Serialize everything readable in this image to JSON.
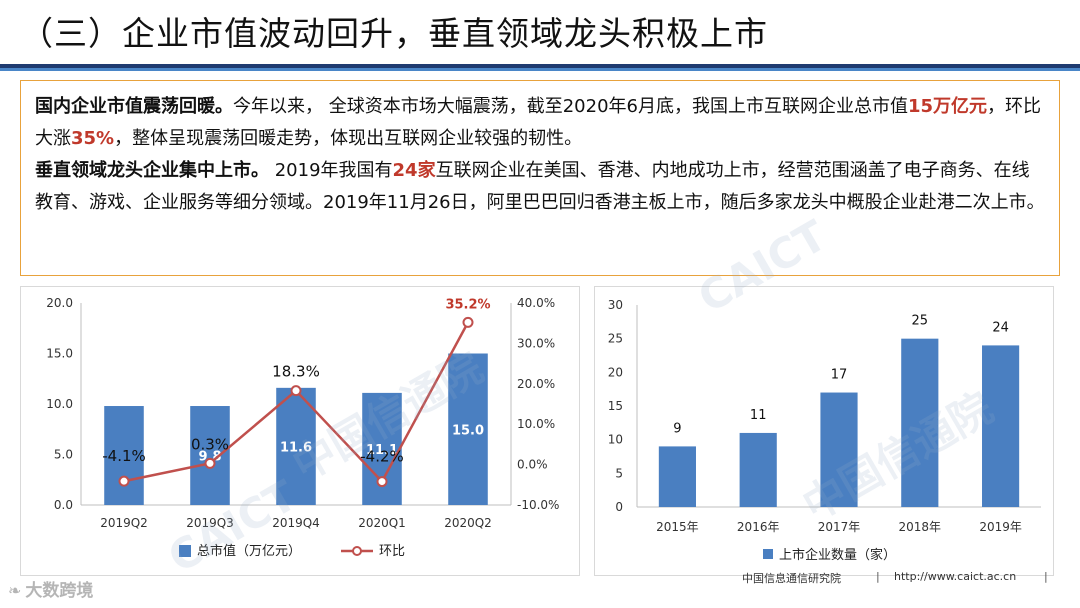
{
  "title": "（三）企业市值波动回升，垂直领域龙头积极上市",
  "paragraph1": {
    "heading": "国内企业市值震荡回暖。",
    "t1": "今年以来， 全球资本市场大幅震荡，截至2020年6月底，我国上市互联网企业总市值",
    "h1": "15万亿元",
    "t2": "，环比大涨",
    "h2": "35%",
    "t3": "，整体呈现震荡回暖走势，体现出互联网企业较强的韧性。"
  },
  "paragraph2": {
    "heading": "垂直领域龙头企业集中上市。",
    "t1": " 2019年我国有",
    "h1": "24家",
    "t2": "互联网企业在美国、香港、内地成功上市，经营范围涵盖了电子商务、在线教育、游戏、企业服务等细分领域。2019年11月26日，阿里巴巴回归香港主板上市，随后多家龙头中概股企业赴港二次上市。"
  },
  "chart_data": [
    {
      "type": "bar+line",
      "categories": [
        "2019Q2",
        "2019Q3",
        "2019Q4",
        "2020Q1",
        "2020Q2"
      ],
      "series": [
        {
          "name": "总市值（万亿元）",
          "kind": "bar",
          "axis": "left",
          "values": [
            9.8,
            9.8,
            11.6,
            11.1,
            15.0
          ],
          "labels": [
            "",
            "9.8",
            "11.6",
            "11.1",
            "15.0"
          ],
          "color": "#4a7fc1"
        },
        {
          "name": "环比",
          "kind": "line",
          "axis": "right",
          "values": [
            -4.1,
            0.3,
            18.3,
            -4.2,
            35.2
          ],
          "labels": [
            "-4.1%",
            "0.3%",
            "18.3%",
            "-4.2%",
            "35.2%"
          ],
          "color": "#c0504d"
        }
      ],
      "y_left": {
        "min": 0,
        "max": 20,
        "ticks": [
          "0.0",
          "5.0",
          "10.0",
          "15.0",
          "20.0"
        ]
      },
      "y_right": {
        "min": -10,
        "max": 40,
        "ticks": [
          "-10.0%",
          "0.0%",
          "10.0%",
          "20.0%",
          "30.0%",
          "40.0%"
        ]
      },
      "legend": [
        "总市值（万亿元）",
        "环比"
      ],
      "legend_position": "bottom",
      "grid": false
    },
    {
      "type": "bar",
      "categories": [
        "2015年",
        "2016年",
        "2017年",
        "2018年",
        "2019年"
      ],
      "values": [
        9,
        11,
        17,
        25,
        24
      ],
      "y": {
        "min": 0,
        "max": 30,
        "ticks": [
          "0",
          "5",
          "10",
          "15",
          "20",
          "25",
          "30"
        ]
      },
      "legend": [
        "上市企业数量（家）"
      ],
      "legend_position": "bottom",
      "color": "#4a7fc1",
      "grid": false
    }
  ],
  "footer": {
    "org": "中国信息通信研究院",
    "sep": "|",
    "url": "http://www.caict.ac.cn"
  },
  "watermark": {
    "corner": "大数跨境",
    "logo": "❧",
    "cn": "中国信通院",
    "en": "CAICT"
  }
}
